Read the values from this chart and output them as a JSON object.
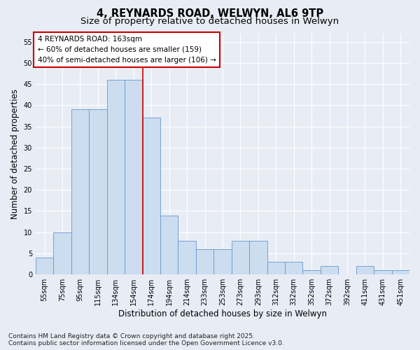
{
  "title_line1": "4, REYNARDS ROAD, WELWYN, AL6 9TP",
  "title_line2": "Size of property relative to detached houses in Welwyn",
  "xlabel": "Distribution of detached houses by size in Welwyn",
  "ylabel": "Number of detached properties",
  "categories": [
    "55sqm",
    "75sqm",
    "95sqm",
    "115sqm",
    "134sqm",
    "154sqm",
    "174sqm",
    "194sqm",
    "214sqm",
    "233sqm",
    "253sqm",
    "273sqm",
    "293sqm",
    "312sqm",
    "332sqm",
    "352sqm",
    "372sqm",
    "392sqm",
    "411sqm",
    "431sqm",
    "451sqm"
  ],
  "values": [
    4,
    10,
    39,
    39,
    46,
    46,
    37,
    14,
    8,
    6,
    6,
    8,
    8,
    3,
    3,
    1,
    2,
    0,
    2,
    1,
    1
  ],
  "bar_color": "#ccddf0",
  "bar_edge_color": "#6699cc",
  "vline_x": 5.5,
  "vline_color": "#cc0000",
  "annotation_box_text": "4 REYNARDS ROAD: 163sqm\n← 60% of detached houses are smaller (159)\n40% of semi-detached houses are larger (106) →",
  "annotation_box_color": "#ffffff",
  "annotation_box_edge_color": "#cc0000",
  "ylim": [
    0,
    57
  ],
  "yticks": [
    0,
    5,
    10,
    15,
    20,
    25,
    30,
    35,
    40,
    45,
    50,
    55
  ],
  "bg_color": "#e8edf5",
  "plot_bg_color": "#e8edf5",
  "grid_color": "#ffffff",
  "footer_text": "Contains HM Land Registry data © Crown copyright and database right 2025.\nContains public sector information licensed under the Open Government Licence v3.0.",
  "title_fontsize": 10.5,
  "subtitle_fontsize": 9.5,
  "axis_label_fontsize": 8.5,
  "tick_fontsize": 7,
  "annotation_fontsize": 7.5,
  "footer_fontsize": 6.5
}
